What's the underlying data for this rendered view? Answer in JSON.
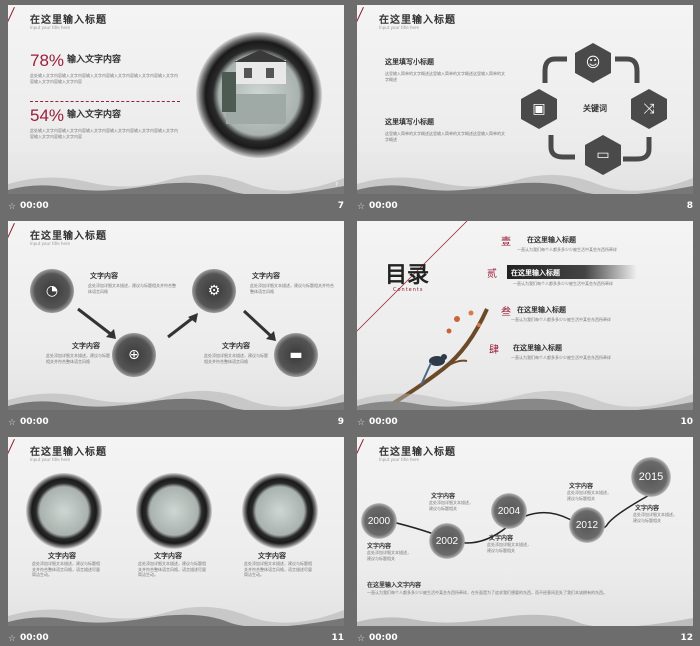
{
  "captions": [
    {
      "time": "00:00",
      "num": "7"
    },
    {
      "time": "00:00",
      "num": "8"
    },
    {
      "time": "00:00",
      "num": "9"
    },
    {
      "time": "00:00",
      "num": "10"
    },
    {
      "time": "00:00",
      "num": "11"
    },
    {
      "time": "00:00",
      "num": "12"
    }
  ],
  "common": {
    "title": "在这里输入标题",
    "subtitle": "Input your title here"
  },
  "s7": {
    "p1": "78%",
    "p1label": "输入文字内容",
    "p2": "54%",
    "p2label": "输入文字内容",
    "t1": "此处输入文字内容输入文字内容输入文字内容输入文字内容输入文字内容输入文字内容输入文字内容输入文字内容",
    "t2": "此处输入文字内容输入文字内容输入文字内容输入文字内容输入文字内容输入文字内容输入文字内容输入文字内容"
  },
  "s8": {
    "h1": "这里填写小标题",
    "t1": "这里输入简单的文字概述这里输入简单的文字概述这里输入简单的文字概述",
    "h2": "这里填写小标题",
    "t2": "这里输入简单的文字概述这里输入简单的文字概述这里输入简单的文字概述",
    "keyword": "关键词"
  },
  "s9": {
    "l1": "文字内容",
    "l2": "文字内容",
    "l3": "文字内容",
    "l4": "文字内容",
    "t": "此处添加详细文本描述，建议与标题相关并符合整体语言风格"
  },
  "s10": {
    "title": "目录",
    "sub": "Contents",
    "items": [
      {
        "n": "壹",
        "t": "在这里输入标题"
      },
      {
        "n": "贰",
        "t": "在这里输入标题"
      },
      {
        "n": "叁",
        "t": "在这里输入标题"
      },
      {
        "n": "肆",
        "t": "在这里输入标题"
      }
    ],
    "desc": "一直认为我们每个人都多多少少被生活中某些东西所牵绊"
  },
  "s11": {
    "l1": "文字内容",
    "l2": "文字内容",
    "l3": "文字内容",
    "t": "此处添加详细文本描述，建议与标题相关并符合整体语言风格，语言描述尽量简洁生动。"
  },
  "s12": {
    "years": [
      "2000",
      "2002",
      "2004",
      "2012",
      "2015"
    ],
    "l": "文字内容",
    "t": "此处添加详细文本描述，建议与标题相关",
    "bottom_title": "在这里输入文字内容",
    "bottom_text": "一直认为我们每个人都多多少少被生活中某些东西所牵绊，在外面是为了追求我们想要的东西，而不经意间丢失了我们本该拥有的东西。"
  }
}
